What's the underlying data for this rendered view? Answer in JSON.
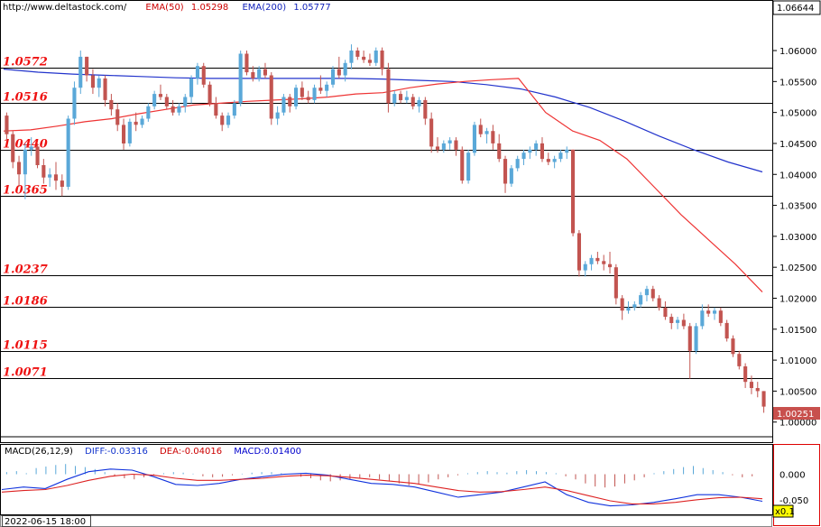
{
  "header": {
    "url": "http://www.deltastock.com/",
    "ema50_label": "EMA(50)",
    "ema50_value": "1.05298",
    "ema200_label": "EMA(200)",
    "ema200_value": "1.05777"
  },
  "macd_header": {
    "name": "MACD(26,12,9)",
    "diff": "DIFF:-0.03316",
    "dea": "DEA:-0.04016",
    "macd": "MACD:0.01400"
  },
  "footer": {
    "date": "2022-06-15 18:00",
    "zoom": "x0.1"
  },
  "colors": {
    "up": "#5aa8d8",
    "down": "#c25450",
    "ema50": "#ee3333",
    "ema200": "#2233cc",
    "level_text": "#ee1111"
  },
  "chart_data": [
    {
      "type": "candlestick",
      "y_axis_ticks": [
        "1.06000",
        "1.05500",
        "1.05000",
        "1.04500",
        "1.04000",
        "1.03500",
        "1.03000",
        "1.02500",
        "1.02000",
        "1.01500",
        "1.01000",
        "1.00500",
        "1.00000"
      ],
      "top_label": "1.06644",
      "last_price": "1.00251",
      "ylim": [
        0.9985,
        1.067
      ],
      "levels": [
        {
          "value": 1.0572,
          "label": "1.0572"
        },
        {
          "value": 1.0516,
          "label": "1.0516"
        },
        {
          "value": 1.044,
          "label": "1.0440"
        },
        {
          "value": 1.0365,
          "label": "1.0365"
        },
        {
          "value": 1.0237,
          "label": "1.0237"
        },
        {
          "value": 1.0186,
          "label": "1.0186"
        },
        {
          "value": 1.0115,
          "label": "1.0115"
        },
        {
          "value": 1.0071,
          "label": "1.0071"
        }
      ],
      "candles": [
        [
          1.0495,
          1.05,
          1.0455,
          1.0465
        ],
        [
          1.0465,
          1.047,
          1.041,
          1.042
        ],
        [
          1.042,
          1.043,
          1.038,
          1.04
        ],
        [
          1.04,
          1.045,
          1.036,
          1.044
        ],
        [
          1.044,
          1.046,
          1.043,
          1.0445
        ],
        [
          1.0445,
          1.045,
          1.041,
          1.0415
        ],
        [
          1.0415,
          1.0425,
          1.0385,
          1.0395
        ],
        [
          1.0395,
          1.041,
          1.038,
          1.04
        ],
        [
          1.04,
          1.042,
          1.0375,
          1.039
        ],
        [
          1.039,
          1.04,
          1.0365,
          1.038
        ],
        [
          1.038,
          1.0495,
          1.0375,
          1.049
        ],
        [
          1.049,
          1.055,
          1.048,
          1.054
        ],
        [
          1.054,
          1.06,
          1.053,
          1.059
        ],
        [
          1.059,
          1.059,
          1.055,
          1.056
        ],
        [
          1.056,
          1.057,
          1.053,
          1.054
        ],
        [
          1.054,
          1.056,
          1.0525,
          1.0555
        ],
        [
          1.0555,
          1.056,
          1.051,
          1.052
        ],
        [
          1.052,
          1.053,
          1.0495,
          1.0505
        ],
        [
          1.0505,
          1.0515,
          1.047,
          1.048
        ],
        [
          1.048,
          1.049,
          1.044,
          1.045
        ],
        [
          1.045,
          1.049,
          1.0445,
          1.0485
        ],
        [
          1.0485,
          1.05,
          1.047,
          1.048
        ],
        [
          1.048,
          1.0495,
          1.0475,
          1.049
        ],
        [
          1.049,
          1.0515,
          1.0485,
          1.051
        ],
        [
          1.051,
          1.0535,
          1.0505,
          1.053
        ],
        [
          1.053,
          1.0545,
          1.052,
          1.0525
        ],
        [
          1.0525,
          1.053,
          1.0505,
          1.051
        ],
        [
          1.051,
          1.052,
          1.0495,
          1.05
        ],
        [
          1.05,
          1.0515,
          1.0495,
          1.051
        ],
        [
          1.051,
          1.053,
          1.05,
          1.0525
        ],
        [
          1.0525,
          1.056,
          1.0515,
          1.0555
        ],
        [
          1.0555,
          1.058,
          1.0545,
          1.0575
        ],
        [
          1.0575,
          1.058,
          1.054,
          1.0545
        ],
        [
          1.0545,
          1.055,
          1.051,
          1.0515
        ],
        [
          1.0515,
          1.0525,
          1.049,
          1.0495
        ],
        [
          1.0495,
          1.05,
          1.047,
          1.048
        ],
        [
          1.048,
          1.05,
          1.0475,
          1.0495
        ],
        [
          1.0495,
          1.052,
          1.049,
          1.0515
        ],
        [
          1.0515,
          1.06,
          1.051,
          1.0595
        ],
        [
          1.0595,
          1.06,
          1.056,
          1.0565
        ],
        [
          1.0565,
          1.0575,
          1.055,
          1.0555
        ],
        [
          1.0555,
          1.0575,
          1.055,
          1.057
        ],
        [
          1.057,
          1.058,
          1.0555,
          1.056
        ],
        [
          1.056,
          1.0565,
          1.048,
          1.049
        ],
        [
          1.049,
          1.051,
          1.048,
          1.05
        ],
        [
          1.05,
          1.053,
          1.0495,
          1.0525
        ],
        [
          1.0525,
          1.053,
          1.05,
          1.051
        ],
        [
          1.051,
          1.0545,
          1.0505,
          1.054
        ],
        [
          1.054,
          1.055,
          1.052,
          1.0525
        ],
        [
          1.0525,
          1.0535,
          1.0515,
          1.052
        ],
        [
          1.052,
          1.0545,
          1.0515,
          1.054
        ],
        [
          1.054,
          1.056,
          1.053,
          1.0535
        ],
        [
          1.0535,
          1.055,
          1.0525,
          1.0545
        ],
        [
          1.0545,
          1.0575,
          1.054,
          1.057
        ],
        [
          1.057,
          1.059,
          1.0555,
          1.056
        ],
        [
          1.056,
          1.0585,
          1.055,
          1.058
        ],
        [
          1.058,
          1.061,
          1.057,
          1.06
        ],
        [
          1.06,
          1.0605,
          1.0585,
          1.059
        ],
        [
          1.059,
          1.06,
          1.058,
          1.0585
        ],
        [
          1.0585,
          1.0595,
          1.0575,
          1.058
        ],
        [
          1.058,
          1.0605,
          1.0575,
          1.06
        ],
        [
          1.06,
          1.0605,
          1.056,
          1.057
        ],
        [
          1.057,
          1.058,
          1.05,
          1.0515
        ],
        [
          1.0515,
          1.0535,
          1.051,
          1.053
        ],
        [
          1.053,
          1.0535,
          1.0515,
          1.052
        ],
        [
          1.052,
          1.0535,
          1.0515,
          1.0525
        ],
        [
          1.0525,
          1.053,
          1.0505,
          1.051
        ],
        [
          1.051,
          1.0525,
          1.05,
          1.052
        ],
        [
          1.052,
          1.0525,
          1.048,
          1.049
        ],
        [
          1.049,
          1.05,
          1.0435,
          1.0445
        ],
        [
          1.0445,
          1.046,
          1.0435,
          1.044
        ],
        [
          1.044,
          1.0455,
          1.0435,
          1.045
        ],
        [
          1.045,
          1.046,
          1.044,
          1.0455
        ],
        [
          1.0455,
          1.046,
          1.043,
          1.044
        ],
        [
          1.044,
          1.0445,
          1.0385,
          1.039
        ],
        [
          1.039,
          1.044,
          1.0385,
          1.0435
        ],
        [
          1.0435,
          1.0485,
          1.043,
          1.048
        ],
        [
          1.048,
          1.049,
          1.046,
          1.0465
        ],
        [
          1.0465,
          1.0475,
          1.045,
          1.047
        ],
        [
          1.047,
          1.048,
          1.044,
          1.045
        ],
        [
          1.045,
          1.0465,
          1.042,
          1.0425
        ],
        [
          1.0425,
          1.043,
          1.037,
          1.0385
        ],
        [
          1.0385,
          1.0415,
          1.038,
          1.041
        ],
        [
          1.041,
          1.043,
          1.0405,
          1.0425
        ],
        [
          1.0425,
          1.044,
          1.0415,
          1.0435
        ],
        [
          1.0435,
          1.0445,
          1.0425,
          1.044
        ],
        [
          1.044,
          1.0455,
          1.043,
          1.045
        ],
        [
          1.045,
          1.046,
          1.042,
          1.0425
        ],
        [
          1.0425,
          1.0435,
          1.0415,
          1.042
        ],
        [
          1.042,
          1.043,
          1.041,
          1.0425
        ],
        [
          1.0425,
          1.044,
          1.042,
          1.0435
        ],
        [
          1.0435,
          1.0445,
          1.0425,
          1.044
        ],
        [
          1.044,
          1.044,
          1.03,
          1.0305
        ],
        [
          1.0305,
          1.031,
          1.0235,
          1.0245
        ],
        [
          1.0245,
          1.026,
          1.0235,
          1.0255
        ],
        [
          1.0255,
          1.027,
          1.0245,
          1.0265
        ],
        [
          1.0265,
          1.0275,
          1.0255,
          1.026
        ],
        [
          1.026,
          1.027,
          1.0245,
          1.0255
        ],
        [
          1.0255,
          1.0275,
          1.024,
          1.025
        ],
        [
          1.025,
          1.0255,
          1.019,
          1.02
        ],
        [
          1.02,
          1.0205,
          1.0165,
          1.018
        ],
        [
          1.018,
          1.0195,
          1.0175,
          1.0185
        ],
        [
          1.0185,
          1.0195,
          1.018,
          1.019
        ],
        [
          1.019,
          1.021,
          1.0185,
          1.0205
        ],
        [
          1.0205,
          1.022,
          1.0195,
          1.0215
        ],
        [
          1.0215,
          1.022,
          1.0195,
          1.02
        ],
        [
          1.02,
          1.0205,
          1.018,
          1.0185
        ],
        [
          1.0185,
          1.0195,
          1.0165,
          1.017
        ],
        [
          1.017,
          1.0175,
          1.015,
          1.016
        ],
        [
          1.016,
          1.017,
          1.015,
          1.0165
        ],
        [
          1.0165,
          1.0175,
          1.015,
          1.0155
        ],
        [
          1.0155,
          1.016,
          1.007,
          1.0115
        ],
        [
          1.0115,
          1.016,
          1.011,
          1.0155
        ],
        [
          1.0155,
          1.019,
          1.015,
          1.018
        ],
        [
          1.018,
          1.019,
          1.017,
          1.0175
        ],
        [
          1.0175,
          1.0185,
          1.0165,
          1.018
        ],
        [
          1.018,
          1.0185,
          1.0155,
          1.016
        ],
        [
          1.016,
          1.0165,
          1.013,
          1.0135
        ],
        [
          1.0135,
          1.014,
          1.0105,
          1.011
        ],
        [
          1.011,
          1.0115,
          1.0085,
          1.009
        ],
        [
          1.009,
          1.0095,
          1.0055,
          1.0065
        ],
        [
          1.0065,
          1.0075,
          1.0045,
          1.0055
        ],
        [
          1.0055,
          1.0065,
          1.004,
          1.005
        ],
        [
          1.005,
          1.005,
          1.0015,
          1.0025
        ]
      ],
      "ema50": [
        1.047,
        1.0472,
        1.0478,
        1.0485,
        1.049,
        1.0498,
        1.0505,
        1.0512,
        1.0515,
        1.0518,
        1.052,
        1.0522,
        1.0525,
        1.053,
        1.0532,
        1.054,
        1.0546,
        1.055,
        1.0553,
        1.0555,
        1.05,
        1.047,
        1.0455,
        1.0425,
        1.038,
        1.0335,
        1.0295,
        1.0255,
        1.021
      ],
      "ema200": [
        1.057,
        1.0565,
        1.0562,
        1.056,
        1.0558,
        1.0556,
        1.0555,
        1.0555,
        1.0555,
        1.0555,
        1.0555,
        1.0554,
        1.0552,
        1.055,
        1.0545,
        1.0538,
        1.0525,
        1.0508,
        1.0486,
        1.0462,
        1.044,
        1.042,
        1.0404
      ],
      "title": "",
      "xlabel": "",
      "ylabel": ""
    },
    {
      "type": "macd",
      "y_axis_ticks": [
        "0.000",
        "-0.050"
      ],
      "ylim": [
        -0.075,
        0.045
      ],
      "series": [
        {
          "name": "DIFF",
          "values": [
            -0.03,
            -0.025,
            -0.028,
            -0.01,
            0.005,
            0.01,
            0.008,
            -0.005,
            -0.02,
            -0.022,
            -0.018,
            -0.01,
            -0.005,
            0.0,
            0.002,
            -0.002,
            -0.01,
            -0.018,
            -0.02,
            -0.025,
            -0.035,
            -0.045,
            -0.04,
            -0.035,
            -0.025,
            -0.015,
            -0.04,
            -0.055,
            -0.062,
            -0.06,
            -0.055,
            -0.048,
            -0.04,
            -0.04,
            -0.045,
            -0.053
          ]
        },
        {
          "name": "DEA",
          "values": [
            -0.035,
            -0.032,
            -0.03,
            -0.022,
            -0.012,
            -0.004,
            0.0,
            -0.002,
            -0.008,
            -0.012,
            -0.012,
            -0.01,
            -0.008,
            -0.004,
            -0.002,
            -0.003,
            -0.006,
            -0.01,
            -0.014,
            -0.018,
            -0.025,
            -0.032,
            -0.035,
            -0.034,
            -0.03,
            -0.025,
            -0.032,
            -0.042,
            -0.052,
            -0.058,
            -0.058,
            -0.055,
            -0.05,
            -0.046,
            -0.045,
            -0.048
          ]
        }
      ],
      "histogram": [
        0.004,
        0.006,
        0.002,
        0.012,
        0.015,
        0.018,
        0.02,
        0.016,
        0.014,
        0.01,
        0.004,
        -0.004,
        -0.008,
        -0.01,
        -0.006,
        -0.002,
        0.002,
        0.004,
        0.003,
        0.001,
        -0.004,
        -0.006,
        -0.005,
        -0.002,
        0.001,
        0.003,
        0.004,
        0.004,
        0.002,
        0.0,
        -0.005,
        -0.008,
        -0.012,
        -0.014,
        -0.012,
        -0.01,
        -0.008,
        -0.006,
        -0.01,
        -0.014,
        -0.018,
        -0.022,
        -0.02,
        -0.016,
        -0.01,
        -0.006,
        -0.002,
        0.002,
        0.004,
        0.006,
        0.004,
        0.003,
        0.006,
        0.008,
        0.006,
        0.004,
        0.002,
        -0.004,
        -0.01,
        -0.018,
        -0.024,
        -0.026,
        -0.024,
        -0.018,
        -0.012,
        -0.006,
        0.002,
        0.006,
        0.01,
        0.014,
        0.016,
        0.012,
        0.008,
        0.004,
        -0.002,
        -0.006,
        -0.004,
        0.0
      ],
      "title": "",
      "xlabel": "",
      "ylabel": ""
    }
  ]
}
